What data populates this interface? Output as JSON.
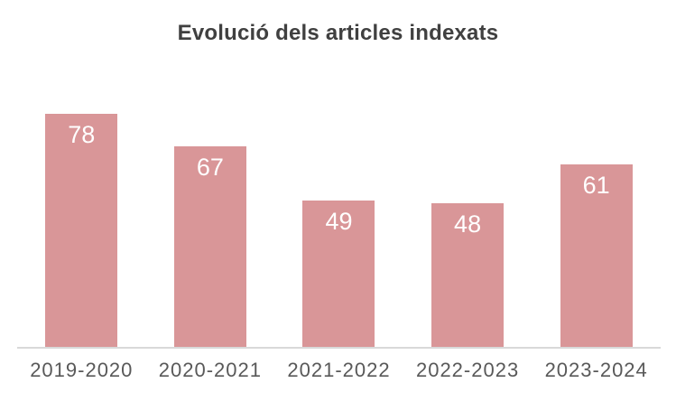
{
  "chart_data": {
    "type": "bar",
    "title": "Evolució dels articles indexats",
    "categories": [
      "2019-2020",
      "2020-2021",
      "2021-2022",
      "2022-2023",
      "2023-2024"
    ],
    "values": [
      78,
      67,
      49,
      48,
      61
    ],
    "xlabel": "",
    "ylabel": "",
    "ylim": [
      0,
      90
    ],
    "grid": false,
    "legend": "none",
    "data_labels_position": "inside-end",
    "colors": {
      "bar_fill": "#d99698",
      "value_label": "#ffffff",
      "title": "#404040",
      "axis_label": "#595959",
      "axis_line": "#d9d9d9",
      "background": "#ffffff"
    }
  }
}
